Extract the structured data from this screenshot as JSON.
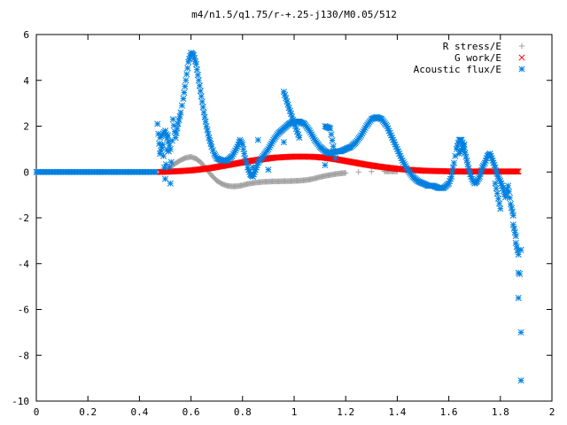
{
  "chart_data": {
    "type": "scatter",
    "title": "m4/n1.5/q1.75/r-+.25-j130/M0.05/512",
    "xlabel": "",
    "ylabel": "",
    "xlim": [
      0,
      2
    ],
    "ylim": [
      -10,
      6
    ],
    "x_ticks": [
      "0",
      "0.2",
      "0.4",
      "0.6",
      "0.8",
      "1",
      "1.2",
      "1.4",
      "1.6",
      "1.8",
      "2"
    ],
    "y_ticks": [
      "6",
      "4",
      "2",
      "0",
      "-2",
      "-4",
      "-6",
      "-8",
      "-10"
    ],
    "grid": false,
    "legend_position": "top-right",
    "series": [
      {
        "name": "R stress/E",
        "color": "#a0a0a0",
        "marker": "plus",
        "points": [
          [
            0.48,
            0.0
          ],
          [
            0.5,
            0.08
          ],
          [
            0.52,
            0.22
          ],
          [
            0.54,
            0.38
          ],
          [
            0.56,
            0.52
          ],
          [
            0.58,
            0.62
          ],
          [
            0.6,
            0.66
          ],
          [
            0.62,
            0.58
          ],
          [
            0.64,
            0.4
          ],
          [
            0.66,
            0.12
          ],
          [
            0.68,
            -0.15
          ],
          [
            0.7,
            -0.38
          ],
          [
            0.72,
            -0.52
          ],
          [
            0.74,
            -0.6
          ],
          [
            0.76,
            -0.63
          ],
          [
            0.78,
            -0.62
          ],
          [
            0.8,
            -0.58
          ],
          [
            0.82,
            -0.52
          ],
          [
            0.84,
            -0.48
          ],
          [
            0.86,
            -0.45
          ],
          [
            0.88,
            -0.43
          ],
          [
            0.9,
            -0.42
          ],
          [
            0.92,
            -0.41
          ],
          [
            0.94,
            -0.41
          ],
          [
            0.96,
            -0.4
          ],
          [
            0.98,
            -0.4
          ],
          [
            1.0,
            -0.39
          ],
          [
            1.02,
            -0.38
          ],
          [
            1.04,
            -0.36
          ],
          [
            1.06,
            -0.33
          ],
          [
            1.08,
            -0.28
          ],
          [
            1.1,
            -0.22
          ],
          [
            1.12,
            -0.17
          ],
          [
            1.14,
            -0.13
          ],
          [
            1.16,
            -0.09
          ],
          [
            1.18,
            -0.06
          ],
          [
            1.2,
            -0.04
          ],
          [
            1.25,
            0.0
          ],
          [
            1.3,
            0.02
          ],
          [
            1.35,
            0.03
          ],
          [
            1.4,
            0.03
          ],
          [
            1.45,
            0.03
          ],
          [
            1.5,
            0.02
          ],
          [
            1.55,
            0.02
          ],
          [
            1.6,
            0.02
          ],
          [
            1.65,
            0.02
          ],
          [
            1.7,
            0.02
          ],
          [
            1.75,
            0.02
          ],
          [
            1.8,
            0.02
          ],
          [
            1.85,
            0.02
          ],
          [
            1.87,
            0.03
          ]
        ]
      },
      {
        "name": "G work/E",
        "color": "#ff0000",
        "marker": "cross",
        "points": [
          [
            0.48,
            0.0
          ],
          [
            0.52,
            0.02
          ],
          [
            0.56,
            0.04
          ],
          [
            0.6,
            0.07
          ],
          [
            0.64,
            0.12
          ],
          [
            0.68,
            0.18
          ],
          [
            0.72,
            0.26
          ],
          [
            0.76,
            0.34
          ],
          [
            0.8,
            0.42
          ],
          [
            0.84,
            0.5
          ],
          [
            0.88,
            0.56
          ],
          [
            0.92,
            0.62
          ],
          [
            0.96,
            0.65
          ],
          [
            1.0,
            0.67
          ],
          [
            1.04,
            0.67
          ],
          [
            1.08,
            0.66
          ],
          [
            1.12,
            0.62
          ],
          [
            1.16,
            0.56
          ],
          [
            1.2,
            0.48
          ],
          [
            1.24,
            0.4
          ],
          [
            1.28,
            0.32
          ],
          [
            1.32,
            0.25
          ],
          [
            1.36,
            0.19
          ],
          [
            1.4,
            0.14
          ],
          [
            1.44,
            0.1
          ],
          [
            1.48,
            0.07
          ],
          [
            1.52,
            0.05
          ],
          [
            1.56,
            0.04
          ],
          [
            1.6,
            0.03
          ],
          [
            1.64,
            0.02
          ],
          [
            1.68,
            0.02
          ],
          [
            1.72,
            0.02
          ],
          [
            1.76,
            0.02
          ],
          [
            1.8,
            0.02
          ],
          [
            1.84,
            0.02
          ],
          [
            1.87,
            0.02
          ]
        ]
      },
      {
        "name": "Acoustic flux/E",
        "color": "#0080e0",
        "marker": "asterisk",
        "points": [
          [
            0.47,
            2.1
          ],
          [
            0.48,
            0.8
          ],
          [
            0.49,
            1.2
          ],
          [
            0.5,
            -0.3
          ],
          [
            0.51,
            1.6
          ],
          [
            0.52,
            -0.5
          ],
          [
            0.53,
            2.3
          ],
          [
            0.54,
            1.5
          ],
          [
            0.55,
            2.1
          ],
          [
            0.56,
            2.6
          ],
          [
            0.57,
            3.2
          ],
          [
            0.58,
            4.0
          ],
          [
            0.59,
            4.8
          ],
          [
            0.6,
            5.2
          ],
          [
            0.61,
            5.1
          ],
          [
            0.62,
            4.7
          ],
          [
            0.63,
            4.0
          ],
          [
            0.64,
            3.3
          ],
          [
            0.65,
            2.6
          ],
          [
            0.66,
            2.0
          ],
          [
            0.67,
            1.5
          ],
          [
            0.68,
            1.1
          ],
          [
            0.69,
            0.8
          ],
          [
            0.7,
            0.6
          ],
          [
            0.72,
            0.5
          ],
          [
            0.74,
            0.5
          ],
          [
            0.76,
            0.7
          ],
          [
            0.78,
            1.1
          ],
          [
            0.79,
            1.4
          ],
          [
            0.8,
            1.2
          ],
          [
            0.81,
            0.6
          ],
          [
            0.82,
            0.2
          ],
          [
            0.83,
            -0.1
          ],
          [
            0.84,
            -0.2
          ],
          [
            0.85,
            0.1
          ],
          [
            0.86,
            0.4
          ],
          [
            0.88,
            0.7
          ],
          [
            0.9,
            1.0
          ],
          [
            0.92,
            1.4
          ],
          [
            0.94,
            1.7
          ],
          [
            0.96,
            1.9
          ],
          [
            0.98,
            2.1
          ],
          [
            1.0,
            2.2
          ],
          [
            1.02,
            2.2
          ],
          [
            1.04,
            2.1
          ],
          [
            1.06,
            1.8
          ],
          [
            1.08,
            1.4
          ],
          [
            1.1,
            1.1
          ],
          [
            1.12,
            0.9
          ],
          [
            1.14,
            0.8
          ],
          [
            1.16,
            0.9
          ],
          [
            1.18,
            0.9
          ],
          [
            1.2,
            1.0
          ],
          [
            1.22,
            1.1
          ],
          [
            1.24,
            1.3
          ],
          [
            1.26,
            1.6
          ],
          [
            1.28,
            2.0
          ],
          [
            1.3,
            2.3
          ],
          [
            1.32,
            2.4
          ],
          [
            1.34,
            2.3
          ],
          [
            1.36,
            2.0
          ],
          [
            1.38,
            1.5
          ],
          [
            1.4,
            1.0
          ],
          [
            1.42,
            0.5
          ],
          [
            1.44,
            0.1
          ],
          [
            1.46,
            -0.2
          ],
          [
            1.48,
            -0.4
          ],
          [
            1.5,
            -0.5
          ],
          [
            1.52,
            -0.6
          ],
          [
            1.54,
            -0.6
          ],
          [
            1.56,
            -0.7
          ],
          [
            1.58,
            -0.7
          ],
          [
            1.6,
            -0.5
          ],
          [
            1.61,
            -0.2
          ],
          [
            1.62,
            0.4
          ],
          [
            1.63,
            1.0
          ],
          [
            1.64,
            1.4
          ],
          [
            1.65,
            1.4
          ],
          [
            1.66,
            1.0
          ],
          [
            1.67,
            0.5
          ],
          [
            1.68,
            0.0
          ],
          [
            1.69,
            -0.3
          ],
          [
            1.7,
            -0.5
          ],
          [
            1.71,
            -0.4
          ],
          [
            1.72,
            -0.2
          ],
          [
            1.73,
            0.2
          ],
          [
            1.74,
            0.4
          ],
          [
            1.75,
            0.7
          ],
          [
            1.76,
            0.8
          ],
          [
            1.77,
            0.5
          ],
          [
            1.78,
            0.2
          ],
          [
            1.79,
            -0.2
          ],
          [
            1.8,
            -0.4
          ],
          [
            1.81,
            -0.7
          ],
          [
            1.82,
            -1.1
          ],
          [
            1.83,
            -0.6
          ],
          [
            1.84,
            -1.4
          ],
          [
            1.85,
            -1.9
          ],
          [
            1.85,
            -2.3
          ],
          [
            1.86,
            -2.8
          ],
          [
            1.86,
            -3.1
          ],
          [
            1.87,
            -3.6
          ],
          [
            1.87,
            -4.4
          ],
          [
            1.87,
            -5.5
          ],
          [
            1.88,
            -3.4
          ],
          [
            1.88,
            -7.0
          ],
          [
            1.88,
            -9.1
          ],
          [
            0.48,
            1.5
          ],
          [
            0.5,
            1.8
          ],
          [
            0.52,
            1.0
          ],
          [
            0.86,
            1.4
          ],
          [
            0.96,
            3.5
          ],
          [
            0.98,
            2.8
          ],
          [
            1.02,
            1.5
          ],
          [
            1.12,
            2.0
          ],
          [
            1.14,
            1.9
          ],
          [
            1.16,
            0.6
          ],
          [
            1.12,
            0.3
          ],
          [
            0.84,
            0.2
          ],
          [
            0.9,
            0.1
          ],
          [
            0.96,
            1.3
          ],
          [
            1.64,
            0.8
          ],
          [
            1.66,
            1.2
          ],
          [
            1.78,
            -0.5
          ],
          [
            1.8,
            -1.6
          ]
        ]
      }
    ]
  }
}
